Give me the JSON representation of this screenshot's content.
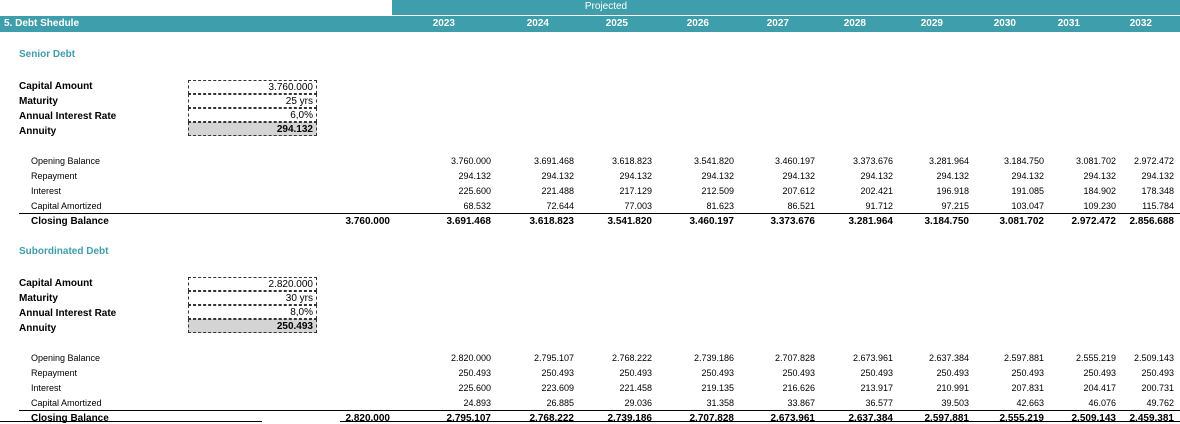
{
  "header": {
    "title": "5. Debt Shedule",
    "projected_label": "Projected",
    "years": [
      "2023",
      "2024",
      "2025",
      "2026",
      "2027",
      "2028",
      "2029",
      "2030",
      "2031",
      "2032"
    ]
  },
  "senior": {
    "title": "Senior Debt",
    "params": [
      {
        "label": "Capital Amount",
        "value": "3.760.000"
      },
      {
        "label": "Maturity",
        "value": "25 yrs"
      },
      {
        "label": "Annual Interest Rate",
        "value": "6,0%"
      },
      {
        "label": "Annuity",
        "value": "294.132"
      }
    ],
    "rows": [
      {
        "label": "Opening Balance",
        "values": [
          "3.760.000",
          "3.691.468",
          "3.618.823",
          "3.541.820",
          "3.460.197",
          "3.373.676",
          "3.281.964",
          "3.184.750",
          "3.081.702",
          "2.972.472"
        ]
      },
      {
        "label": "Repayment",
        "values": [
          "294.132",
          "294.132",
          "294.132",
          "294.132",
          "294.132",
          "294.132",
          "294.132",
          "294.132",
          "294.132",
          "294.132"
        ]
      },
      {
        "label": "Interest",
        "values": [
          "225.600",
          "221.488",
          "217.129",
          "212.509",
          "207.612",
          "202.421",
          "196.918",
          "191.085",
          "184.902",
          "178.348"
        ]
      },
      {
        "label": "Capital Amortized",
        "values": [
          "68.532",
          "72.644",
          "77.003",
          "81.623",
          "86.521",
          "91.712",
          "97.215",
          "103.047",
          "109.230",
          "115.784"
        ]
      }
    ],
    "closing": {
      "label": "Closing Balance",
      "initial": "3.760.000",
      "values": [
        "3.691.468",
        "3.618.823",
        "3.541.820",
        "3.460.197",
        "3.373.676",
        "3.281.964",
        "3.184.750",
        "3.081.702",
        "2.972.472",
        "2.856.688"
      ]
    }
  },
  "subordinated": {
    "title": "Subordinated Debt",
    "params": [
      {
        "label": "Capital Amount",
        "value": "2.820.000"
      },
      {
        "label": "Maturity",
        "value": "30 yrs"
      },
      {
        "label": "Annual Interest Rate",
        "value": "8,0%"
      },
      {
        "label": "Annuity",
        "value": "250.493"
      }
    ],
    "rows": [
      {
        "label": "Opening Balance",
        "values": [
          "2.820.000",
          "2.795.107",
          "2.768.222",
          "2.739.186",
          "2.707.828",
          "2.673.961",
          "2.637.384",
          "2.597.881",
          "2.555.219",
          "2.509.143"
        ]
      },
      {
        "label": "Repayment",
        "values": [
          "250.493",
          "250.493",
          "250.493",
          "250.493",
          "250.493",
          "250.493",
          "250.493",
          "250.493",
          "250.493",
          "250.493"
        ]
      },
      {
        "label": "Interest",
        "values": [
          "225.600",
          "223.609",
          "221.458",
          "219.135",
          "216.626",
          "213.917",
          "210.991",
          "207.831",
          "204.417",
          "200.731"
        ]
      },
      {
        "label": "Capital Amortized",
        "values": [
          "24.893",
          "26.885",
          "29.036",
          "31.358",
          "33.867",
          "36.577",
          "39.503",
          "42.663",
          "46.076",
          "49.762"
        ]
      }
    ],
    "closing": {
      "label": "Closing Balance",
      "initial": "2.820.000",
      "values": [
        "2.795.107",
        "2.768.222",
        "2.739.186",
        "2.707.828",
        "2.673.961",
        "2.637.384",
        "2.597.881",
        "2.555.219",
        "2.509.143",
        "2.459.381"
      ]
    }
  }
}
